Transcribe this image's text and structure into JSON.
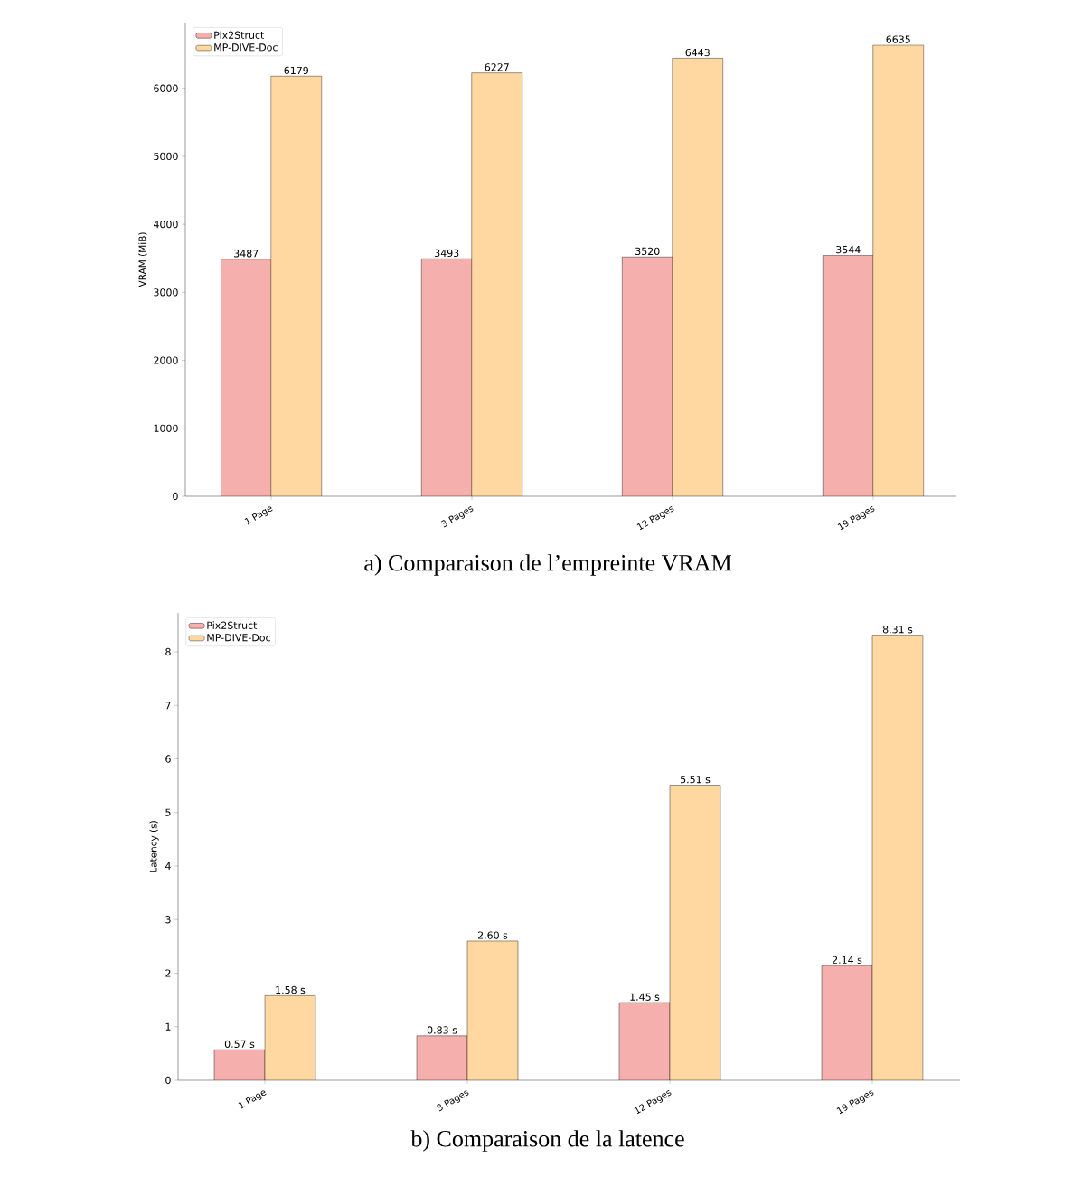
{
  "chart_data": [
    {
      "type": "bar",
      "title": "a) Comparaison de l’empreinte VRAM",
      "ylabel": "VRAM (MiB)",
      "categories": [
        "1 Page",
        "3 Pages",
        "12 Pages",
        "19 Pages"
      ],
      "series": [
        {
          "name": "Pix2Struct",
          "color": "#f5b0ad",
          "values": [
            3487,
            3493,
            3520,
            3544
          ]
        },
        {
          "name": "MP-DIVE-Doc",
          "color": "#fed7a1",
          "values": [
            6179,
            6227,
            6443,
            6635
          ]
        }
      ],
      "ylim": [
        0,
        6967
      ],
      "yticks": [
        0,
        1000,
        2000,
        3000,
        4000,
        5000,
        6000
      ],
      "data_labels": true,
      "legend": "top left",
      "grid": false
    },
    {
      "type": "bar",
      "title": "b) Comparaison de la latence",
      "ylabel": "Latency (s)",
      "categories": [
        "1 Page",
        "3 Pages",
        "12 Pages",
        "19 Pages"
      ],
      "series": [
        {
          "name": "Pix2Struct",
          "color": "#f5b0ad",
          "values": [
            0.57,
            0.83,
            1.45,
            2.14
          ],
          "value_labels": [
            "0.57 s",
            "0.83 s",
            "1.45 s",
            "2.14 s"
          ]
        },
        {
          "name": "MP-DIVE-Doc",
          "color": "#fed7a1",
          "values": [
            1.58,
            2.6,
            5.51,
            8.31
          ],
          "value_labels": [
            "1.58 s",
            "2.60 s",
            "5.51 s",
            "8.31 s"
          ]
        }
      ],
      "ylim": [
        0,
        8.7255
      ],
      "yticks": [
        0,
        1,
        2,
        3,
        4,
        5,
        6,
        7,
        8
      ],
      "legend": "top left",
      "grid": false
    }
  ]
}
